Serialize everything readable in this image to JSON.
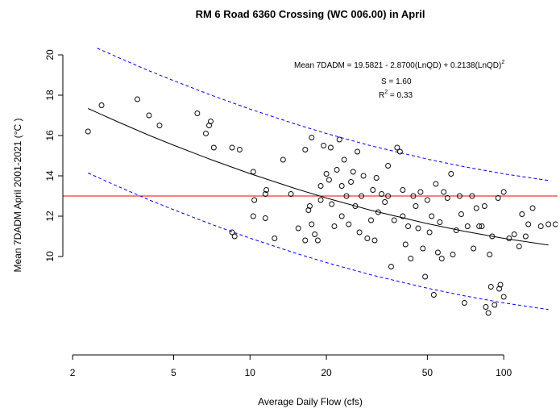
{
  "chart_data": {
    "type": "scatter",
    "title": "RM 6 Road 6360 Crossing (WC 006.00) in April",
    "x_label": "Average Daily Flow (cfs)",
    "y_label": "Mean 7DADM April 2001-2021 (°C )",
    "annotations": {
      "equation": [
        "Mean 7DADM =  19.5821 - 2.8700(LnQD) + 0.2138(LnQD)",
        "2"
      ],
      "s": "S = 1.60",
      "r2": [
        "R",
        "2",
        " = 0.33"
      ]
    },
    "x_log": true,
    "xlim": [
      1.83,
      163
    ],
    "ylim": [
      5.12,
      20.92
    ],
    "xticks": [
      2,
      5,
      10,
      20,
      50,
      100
    ],
    "yticks": [
      10,
      12,
      14,
      16,
      18,
      20
    ],
    "color": "#000000",
    "x": [
      2.3,
      2.6,
      3.6,
      4,
      4.4,
      6.2,
      6.7,
      6.9,
      7,
      7.2,
      8.5,
      9.1,
      8.5,
      8.7,
      10.3,
      10.3,
      10.4,
      11.5,
      11.6,
      11.5,
      12.5,
      13.5,
      14.5,
      15.5,
      16.5,
      16.5,
      17.5,
      17,
      17.2,
      17.5,
      18,
      18.5,
      19,
      19,
      19.5,
      20,
      20.5,
      20.8,
      21,
      21.5,
      22,
      22.5,
      23,
      23,
      23.5,
      24,
      24.5,
      25,
      25.5,
      26,
      26.5,
      27,
      27.5,
      28,
      29,
      30,
      30.5,
      31,
      31.5,
      32,
      33,
      34,
      35,
      35,
      36,
      37,
      38,
      39,
      40,
      40,
      41,
      42,
      43,
      44,
      45,
      46,
      47,
      48,
      49,
      50,
      51,
      52,
      53,
      54,
      55,
      56,
      57,
      58,
      60,
      62,
      63,
      65,
      67,
      68,
      70,
      72,
      75,
      76,
      78,
      80,
      82,
      84,
      85,
      87,
      88,
      89,
      90,
      92,
      95,
      96,
      97,
      100,
      100,
      105,
      110,
      115,
      118,
      122,
      125,
      130,
      140,
      150,
      160
    ],
    "values": [
      16.2,
      17.5,
      17.8,
      17.0,
      16.5,
      17.1,
      16.1,
      16.5,
      16.7,
      15.4,
      15.4,
      15.3,
      11.2,
      11.0,
      14.2,
      12.0,
      12.8,
      13.1,
      13.3,
      11.9,
      10.9,
      14.8,
      13.1,
      11.4,
      10.8,
      15.3,
      15.9,
      12.3,
      12.5,
      11.6,
      11.1,
      10.8,
      13.5,
      12.8,
      15.5,
      14.1,
      13.8,
      15.4,
      12.6,
      11.5,
      14.3,
      15.8,
      13.5,
      12.0,
      14.8,
      13.0,
      11.6,
      13.7,
      14.2,
      12.5,
      15.2,
      11.2,
      13.0,
      14.0,
      10.9,
      11.8,
      13.3,
      10.8,
      13.9,
      12.2,
      13.1,
      12.7,
      14.5,
      13.0,
      9.5,
      11.8,
      15.4,
      15.2,
      12.0,
      13.3,
      10.6,
      11.5,
      9.9,
      13.0,
      12.5,
      11.4,
      13.2,
      10.4,
      9.0,
      12.8,
      11.2,
      12.0,
      8.1,
      13.6,
      10.2,
      11.7,
      9.9,
      13.2,
      12.9,
      14.1,
      10.1,
      11.3,
      13.0,
      12.1,
      7.7,
      11.5,
      13.0,
      10.4,
      12.4,
      11.5,
      11.5,
      12.5,
      7.5,
      7.2,
      10.1,
      8.5,
      11.0,
      7.6,
      12.9,
      8.4,
      8.6,
      13.2,
      8.0,
      10.9,
      11.1,
      10.5,
      12.1,
      11.0,
      11.6,
      12.4,
      11.5,
      11.6,
      11.6
    ],
    "lines": [
      {
        "color": "#000000",
        "dashed": false,
        "x": [
          2.3,
          3,
          4,
          5,
          7,
          10,
          15,
          20,
          30,
          50,
          70,
          100,
          150
        ],
        "values": [
          17.34,
          16.69,
          16.01,
          15.52,
          14.81,
          14.11,
          13.38,
          12.9,
          12.29,
          11.63,
          11.25,
          10.9,
          10.57
        ]
      },
      {
        "color": "#0000ff",
        "dashed": true,
        "x": [
          2.5,
          3,
          4,
          5,
          7,
          10,
          15,
          20,
          30,
          50,
          70,
          100,
          150
        ],
        "values": [
          20.33,
          19.89,
          19.21,
          18.72,
          18.01,
          17.31,
          16.58,
          16.1,
          15.49,
          14.83,
          14.45,
          14.1,
          13.77
        ]
      },
      {
        "color": "#0000ff",
        "dashed": true,
        "x": [
          2.3,
          3,
          4,
          5,
          7,
          10,
          15,
          20,
          30,
          50,
          70,
          100,
          150
        ],
        "values": [
          14.14,
          13.49,
          12.81,
          12.32,
          11.61,
          10.91,
          10.18,
          9.7,
          9.09,
          8.43,
          8.05,
          7.7,
          7.37
        ]
      }
    ],
    "hline": {
      "value": 13,
      "color": "#ff0000"
    }
  }
}
